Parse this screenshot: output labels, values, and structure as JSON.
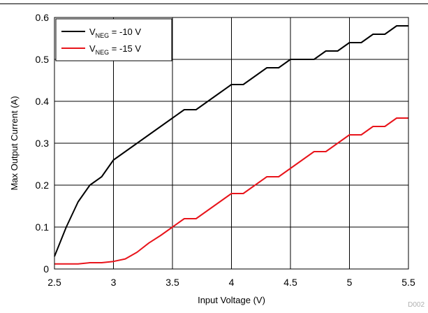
{
  "chart_data": {
    "type": "line",
    "title": "",
    "xlabel": "Input Voltage (V)",
    "ylabel": "Max Output Current (A)",
    "xlim": [
      2.5,
      5.5
    ],
    "ylim": [
      0,
      0.6
    ],
    "x_ticks": [
      "2.5",
      "3",
      "3.5",
      "4",
      "4.5",
      "5",
      "5.5"
    ],
    "y_ticks": [
      "0",
      "0.1",
      "0.2",
      "0.3",
      "0.4",
      "0.5",
      "0.6"
    ],
    "x_tick_values": [
      2.5,
      3,
      3.5,
      4,
      4.5,
      5,
      5.5
    ],
    "y_tick_values": [
      0,
      0.1,
      0.2,
      0.3,
      0.4,
      0.5,
      0.6
    ],
    "grid": true,
    "legend_position": "top-left",
    "series": [
      {
        "name_prefix": "V",
        "name_subscript": "NEG",
        "name_suffix": " = -10 V",
        "color": "#000000",
        "x": [
          2.5,
          2.6,
          2.7,
          2.8,
          2.9,
          3.0,
          3.1,
          3.2,
          3.3,
          3.4,
          3.5,
          3.6,
          3.7,
          3.8,
          3.9,
          4.0,
          4.1,
          4.2,
          4.3,
          4.4,
          4.5,
          4.6,
          4.7,
          4.8,
          4.9,
          5.0,
          5.1,
          5.2,
          5.3,
          5.4,
          5.5
        ],
        "values": [
          0.03,
          0.1,
          0.16,
          0.2,
          0.22,
          0.26,
          0.28,
          0.3,
          0.32,
          0.34,
          0.36,
          0.38,
          0.38,
          0.4,
          0.42,
          0.44,
          0.44,
          0.46,
          0.48,
          0.48,
          0.5,
          0.5,
          0.5,
          0.52,
          0.52,
          0.54,
          0.54,
          0.56,
          0.56,
          0.58,
          0.58
        ]
      },
      {
        "name_prefix": "V",
        "name_subscript": "NEG",
        "name_suffix": " = -15 V",
        "color": "#e8141b",
        "x": [
          2.5,
          2.6,
          2.7,
          2.8,
          2.9,
          3.0,
          3.1,
          3.2,
          3.3,
          3.4,
          3.5,
          3.6,
          3.7,
          3.8,
          3.9,
          4.0,
          4.1,
          4.2,
          4.3,
          4.4,
          4.5,
          4.6,
          4.7,
          4.8,
          4.9,
          5.0,
          5.1,
          5.2,
          5.3,
          5.4,
          5.5
        ],
        "values": [
          0.012,
          0.012,
          0.012,
          0.015,
          0.015,
          0.018,
          0.024,
          0.04,
          0.062,
          0.08,
          0.1,
          0.12,
          0.12,
          0.14,
          0.16,
          0.18,
          0.18,
          0.2,
          0.22,
          0.22,
          0.24,
          0.26,
          0.28,
          0.28,
          0.3,
          0.32,
          0.32,
          0.34,
          0.34,
          0.36,
          0.36
        ]
      }
    ]
  },
  "footer": {
    "figure_id": "D002"
  }
}
